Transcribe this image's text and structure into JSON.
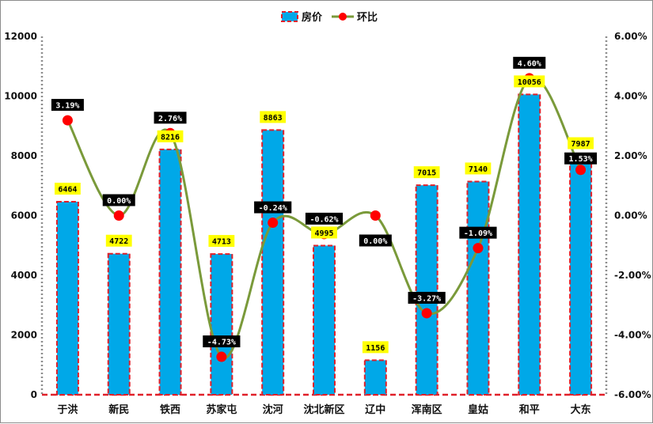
{
  "chart_data": {
    "type": "bar",
    "categories": [
      "于洪",
      "新民",
      "铁西",
      "苏家屯",
      "沈河",
      "沈北新区",
      "辽中",
      "浑南区",
      "皇姑",
      "和平",
      "大东"
    ],
    "series": [
      {
        "name": "房价",
        "type": "bar",
        "axis": "left",
        "values": [
          6464,
          4722,
          8216,
          4713,
          8863,
          4995,
          1156,
          7015,
          7140,
          10056,
          7987
        ],
        "labels": [
          "6464",
          "4722",
          "8216",
          "4713",
          "8863",
          "4995",
          "1156",
          "7015",
          "7140",
          "10056",
          "7987"
        ],
        "color": "#00a8e8",
        "border_color": "#e0202a"
      },
      {
        "name": "环比",
        "type": "line",
        "axis": "right",
        "values": [
          3.19,
          0.0,
          2.76,
          -4.73,
          -0.24,
          -0.62,
          0.0,
          -3.27,
          -1.09,
          4.6,
          1.53
        ],
        "labels": [
          "3.19%",
          "0.00%",
          "2.76%",
          "-4.73%",
          "-0.24%",
          "-0.62%",
          "0.00%",
          "-3.27%",
          "-1.09%",
          "4.60%",
          "1.53%"
        ],
        "line_color": "#7a9a3a",
        "marker_color": "#ff0000"
      }
    ],
    "ylim": [
      0,
      12000
    ],
    "yticks": [
      "0",
      "2000",
      "4000",
      "6000",
      "8000",
      "10000",
      "12000"
    ],
    "y2lim": [
      -6,
      6
    ],
    "y2ticks": [
      "-6.00%",
      "-4.00%",
      "-2.00%",
      "0.00%",
      "2.00%",
      "4.00%",
      "6.00%"
    ],
    "legend_position": "top-center",
    "grid": false
  }
}
